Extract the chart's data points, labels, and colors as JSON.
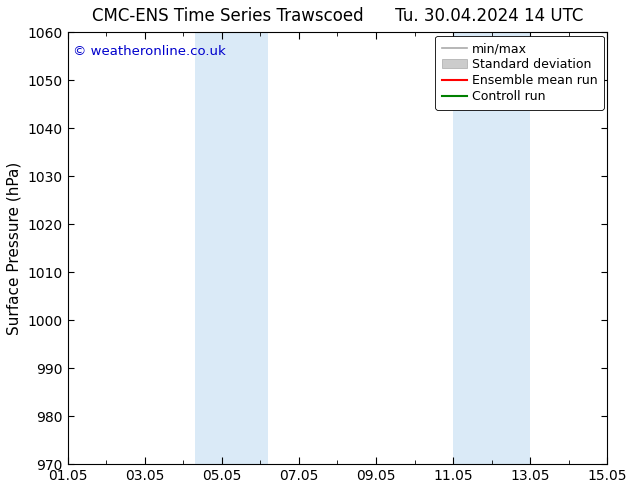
{
  "title_left": "CMC-ENS Time Series Trawscoed",
  "title_right": "Tu. 30.04.2024 14 UTC",
  "ylabel": "Surface Pressure (hPa)",
  "ylim": [
    970,
    1060
  ],
  "yticks": [
    970,
    980,
    990,
    1000,
    1010,
    1020,
    1030,
    1040,
    1050,
    1060
  ],
  "xlim_start": 0,
  "xlim_end": 14,
  "xtick_labels": [
    "01.05",
    "03.05",
    "05.05",
    "07.05",
    "09.05",
    "11.05",
    "13.05",
    "15.05"
  ],
  "xtick_positions": [
    0,
    2,
    4,
    6,
    8,
    10,
    12,
    14
  ],
  "shaded_bands": [
    {
      "xmin": 3.3,
      "xmax": 5.2
    },
    {
      "xmin": 10.0,
      "xmax": 12.0
    }
  ],
  "band_color": "#daeaf7",
  "copyright_text": "© weatheronline.co.uk",
  "copyright_color": "#0000cc",
  "legend_labels": [
    "min/max",
    "Standard deviation",
    "Ensemble mean run",
    "Controll run"
  ],
  "legend_line_colors": [
    "#aaaaaa",
    "#cccccc",
    "#ff0000",
    "#008000"
  ],
  "background_color": "#ffffff",
  "grid_color": "#dddddd",
  "title_fontsize": 12,
  "axis_label_fontsize": 11,
  "tick_fontsize": 10,
  "legend_fontsize": 9
}
